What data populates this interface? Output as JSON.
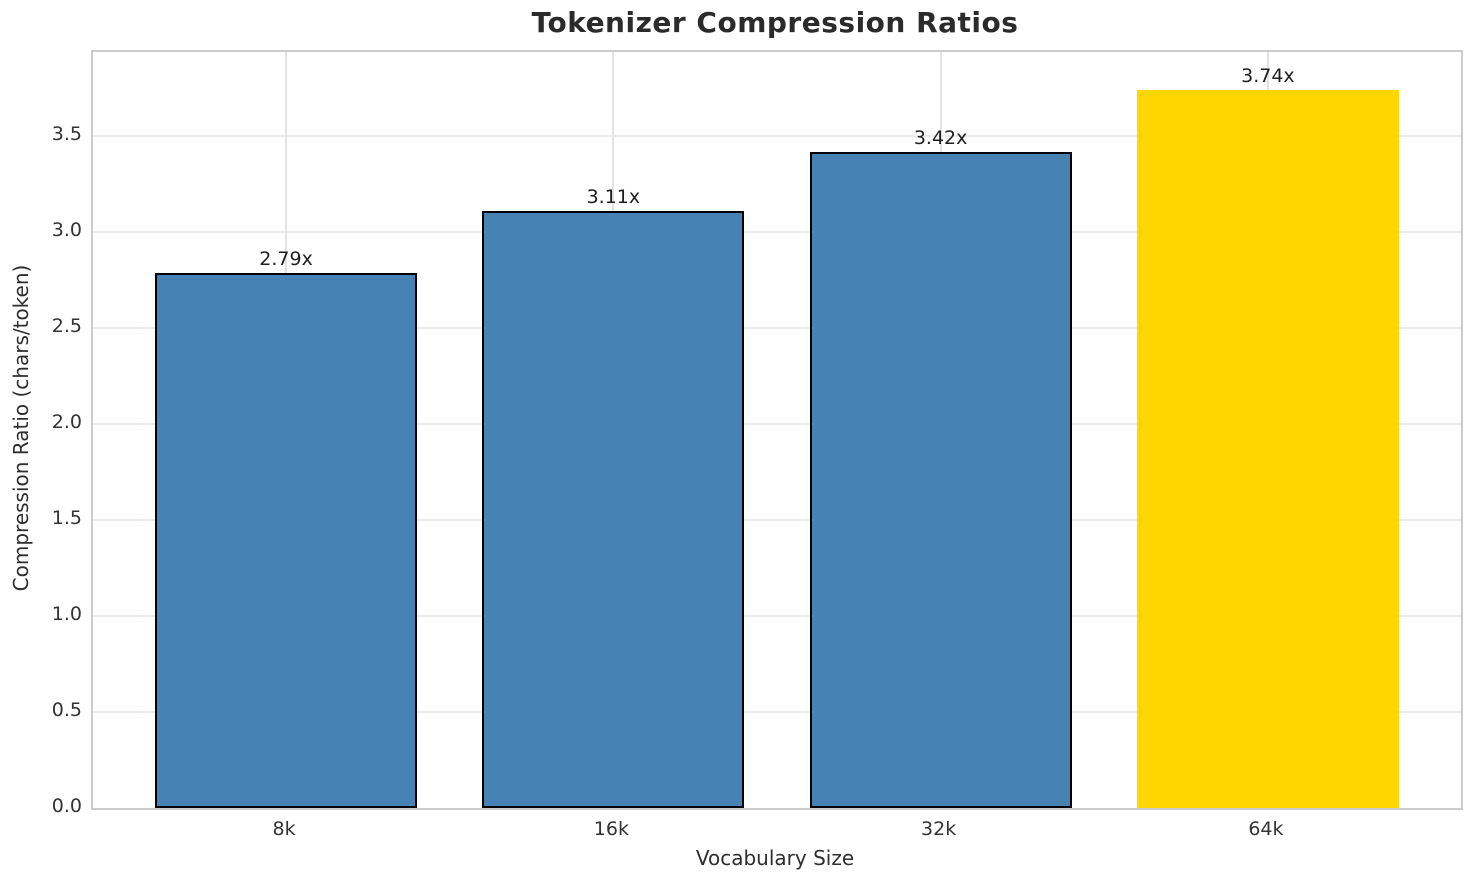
{
  "chart_data": {
    "type": "bar",
    "title": "Tokenizer Compression Ratios",
    "xlabel": "Vocabulary Size",
    "ylabel": "Compression Ratio (chars/token)",
    "categories": [
      "8k",
      "16k",
      "32k",
      "64k"
    ],
    "values": [
      2.79,
      3.11,
      3.42,
      3.74
    ],
    "bar_labels": [
      "2.79x",
      "3.11x",
      "3.42x",
      "3.74x"
    ],
    "yticks": [
      0.0,
      0.5,
      1.0,
      1.5,
      2.0,
      2.5,
      3.0,
      3.5
    ],
    "ytick_labels": [
      "0.0",
      "0.5",
      "1.0",
      "1.5",
      "2.0",
      "2.5",
      "3.0",
      "3.5"
    ],
    "ylim": [
      0,
      3.94
    ],
    "xlim": [
      -0.59,
      3.59
    ],
    "bar_width_units": 0.8,
    "grid": true,
    "legend": "none",
    "bar_colors": [
      "#4682b4",
      "#4682b4",
      "#4682b4",
      "#ffd700"
    ],
    "bar_edge_colors": [
      "#000000",
      "#000000",
      "#000000",
      "none"
    ],
    "highlight_index": 3,
    "accent_color": "#4682b4",
    "highlight_color": "#ffd700",
    "grid_color": "#ebebeb",
    "spine_color": "#cccccc",
    "text_color": "#2b2b2b"
  }
}
